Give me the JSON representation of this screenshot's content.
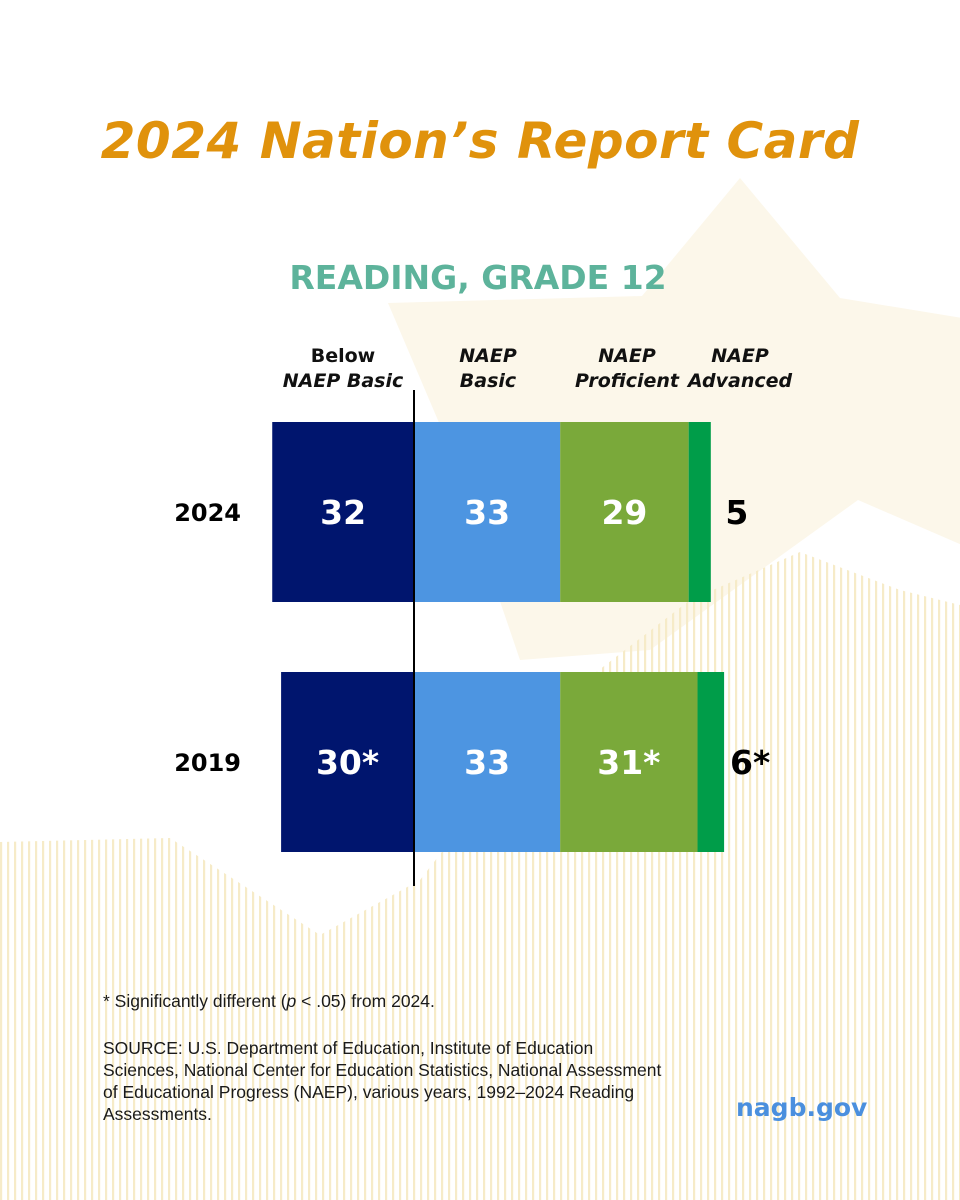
{
  "header": {
    "title": "2024 Nation’s Report Card",
    "subtitle": "READING, GRADE 12"
  },
  "chart_data": {
    "type": "bar",
    "orientation": "horizontal",
    "stacked": true,
    "categories": [
      "2024",
      "2019"
    ],
    "level_headers": [
      [
        "Below",
        "NAEP Basic"
      ],
      [
        "NAEP",
        "Basic"
      ],
      [
        "NAEP",
        "Proficient"
      ],
      [
        "NAEP",
        "Advanced"
      ]
    ],
    "series": [
      {
        "values": [
          32,
          30
        ],
        "labels": [
          "32",
          "30*"
        ],
        "color": "#00156E",
        "label_color": "#ffffff"
      },
      {
        "values": [
          33,
          33
        ],
        "labels": [
          "33",
          "33"
        ],
        "color": "#4D95E1",
        "label_color": "#ffffff"
      },
      {
        "values": [
          29,
          31
        ],
        "labels": [
          "29",
          "31*"
        ],
        "color": "#7AA93A",
        "label_color": "#ffffff"
      },
      {
        "values": [
          5,
          6
        ],
        "labels": [
          "5",
          "6*"
        ],
        "color": "#009D49",
        "label_color": "#000000"
      }
    ],
    "baseline": "boundary between Below NAEP Basic and NAEP Basic",
    "grid": false,
    "legend": "column headers above bars"
  },
  "footer": {
    "footnote_prefix": "* Significantly different (",
    "footnote_p": "p",
    "footnote_suffix": " < .05) from 2024.",
    "source": "SOURCE: U.S. Department of Education, Institute of Education Sciences, National Center for Education Statistics, National Assessment of Educational Progress (NAEP), various years, 1992–2024 Reading Assessments.",
    "site": "nagb.gov"
  },
  "colors": {
    "title": "#E0920C",
    "subtitle": "#5DB39B",
    "site": "#4A8FDE",
    "star_fill": "#FCF7EA",
    "stripe": "#F6EBC8"
  }
}
